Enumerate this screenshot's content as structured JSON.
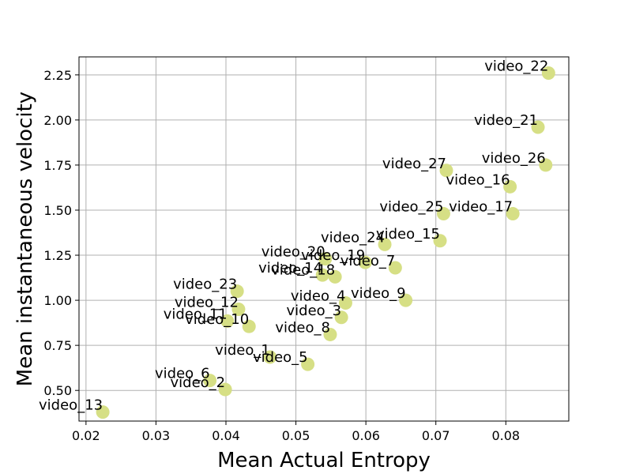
{
  "chart_data": {
    "type": "scatter",
    "title": "",
    "xlabel": "Mean Actual Entropy",
    "ylabel": "Mean instantaneous velocity",
    "xlim": [
      0.019,
      0.089
    ],
    "ylim": [
      0.33,
      2.35
    ],
    "x_ticks": [
      "0.02",
      "0.03",
      "0.04",
      "0.05",
      "0.06",
      "0.07",
      "0.08"
    ],
    "y_ticks": [
      "0.50",
      "0.75",
      "1.00",
      "1.25",
      "1.50",
      "1.75",
      "2.00",
      "2.25"
    ],
    "grid": true,
    "marker_color": "#d6df85",
    "points": [
      {
        "label": "video_22",
        "x": 0.0861,
        "y": 2.26
      },
      {
        "label": "video_21",
        "x": 0.0846,
        "y": 1.96
      },
      {
        "label": "video_26",
        "x": 0.0857,
        "y": 1.75
      },
      {
        "label": "video_27",
        "x": 0.0715,
        "y": 1.72
      },
      {
        "label": "video_16",
        "x": 0.0806,
        "y": 1.63
      },
      {
        "label": "video_25",
        "x": 0.0711,
        "y": 1.48
      },
      {
        "label": "video_17",
        "x": 0.081,
        "y": 1.48
      },
      {
        "label": "video_15",
        "x": 0.0706,
        "y": 1.33
      },
      {
        "label": "video_24",
        "x": 0.0627,
        "y": 1.31
      },
      {
        "label": "video_7",
        "x": 0.0642,
        "y": 1.18
      },
      {
        "label": "video_19",
        "x": 0.0599,
        "y": 1.21
      },
      {
        "label": "video_20",
        "x": 0.0542,
        "y": 1.23
      },
      {
        "label": "video_14",
        "x": 0.0538,
        "y": 1.14
      },
      {
        "label": "video_18",
        "x": 0.0556,
        "y": 1.13
      },
      {
        "label": "video_9",
        "x": 0.0657,
        "y": 1.0
      },
      {
        "label": "video_4",
        "x": 0.0571,
        "y": 0.985
      },
      {
        "label": "video_3",
        "x": 0.0565,
        "y": 0.905
      },
      {
        "label": "video_8",
        "x": 0.0549,
        "y": 0.81
      },
      {
        "label": "video_23",
        "x": 0.0416,
        "y": 1.05
      },
      {
        "label": "video_12",
        "x": 0.0418,
        "y": 0.95
      },
      {
        "label": "video_11",
        "x": 0.0402,
        "y": 0.885
      },
      {
        "label": "video_10",
        "x": 0.0433,
        "y": 0.855
      },
      {
        "label": "video_1",
        "x": 0.0463,
        "y": 0.685
      },
      {
        "label": "video_5",
        "x": 0.0517,
        "y": 0.645
      },
      {
        "label": "video_6",
        "x": 0.0377,
        "y": 0.555
      },
      {
        "label": "video_2",
        "x": 0.0399,
        "y": 0.505
      },
      {
        "label": "video_13",
        "x": 0.0224,
        "y": 0.38
      }
    ]
  }
}
